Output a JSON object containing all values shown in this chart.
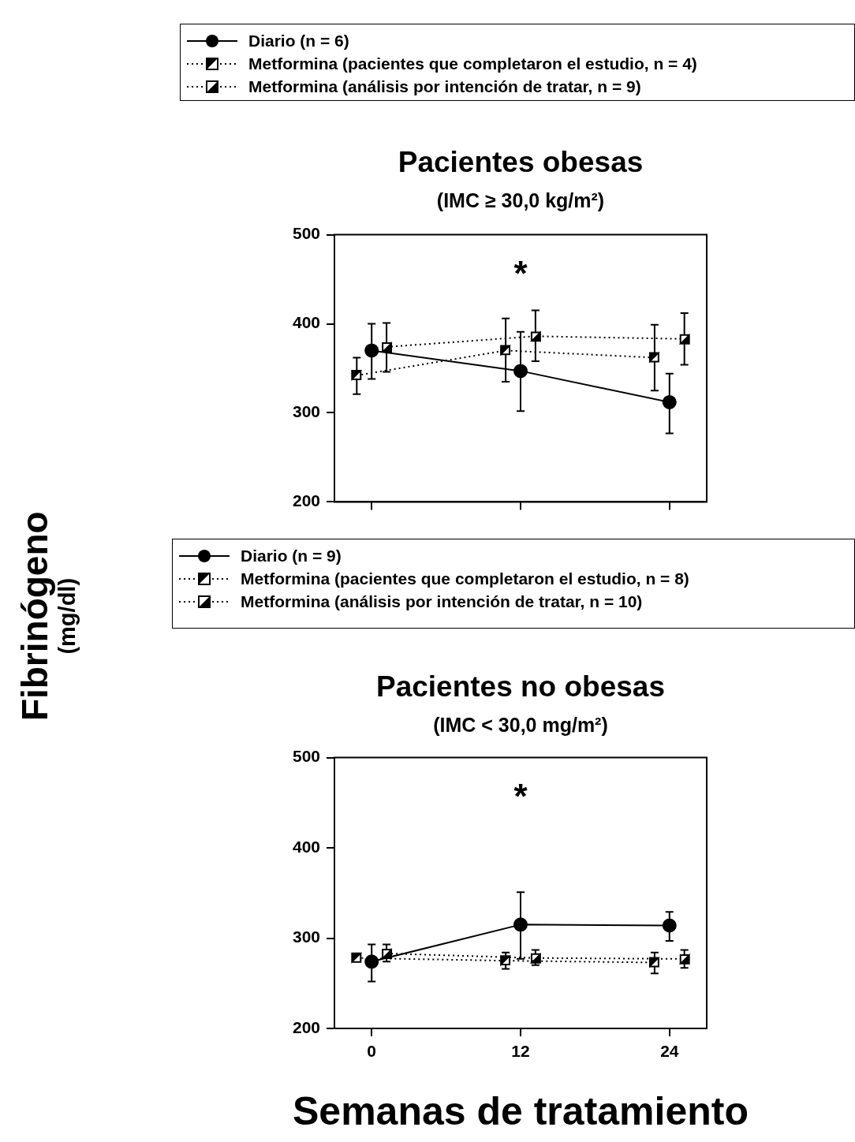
{
  "chart_data": [
    {
      "type": "line",
      "title": "Pacientes obesas",
      "subtitle": "(IMC ≥ 30,0 kg/m²)",
      "ylabel": "Fibrinógeno (mg/dl)",
      "xlim": [
        -3,
        27
      ],
      "xticks": [
        {
          "value": 0,
          "label": null
        },
        {
          "value": 12,
          "label": null
        },
        {
          "value": 24,
          "label": null
        }
      ],
      "ylim": [
        200,
        500
      ],
      "yticks": [
        200,
        300,
        400,
        500
      ],
      "tick_labels": "y",
      "legend": "top",
      "annotations": [
        "*"
      ],
      "series": [
        {
          "name": "Diario (n = 6)",
          "color": "#000000",
          "marker": "circle",
          "line_style": "solid",
          "x": [
            0,
            12,
            24
          ],
          "values": [
            370,
            347,
            312
          ],
          "errors": [
            [
              338,
              400
            ],
            [
              302,
              391
            ],
            [
              277,
              344
            ]
          ]
        },
        {
          "name": "Metformina (pacientes que completaron el estudio, n = 4)",
          "color": "#000000",
          "marker": "square",
          "line_style": "dotted",
          "x": [
            -1.2,
            10.8,
            22.8
          ],
          "values": [
            342,
            370,
            362
          ],
          "errors": [
            [
              321,
              362
            ],
            [
              335,
              406
            ],
            [
              325,
              399
            ]
          ]
        },
        {
          "name": "Metformina (análisis por intención de tratar, n = 9)",
          "color": "#000000",
          "marker": "square",
          "line_style": "dotted",
          "x": [
            1.2,
            13.2,
            25.2
          ],
          "values": [
            374,
            386,
            383
          ],
          "errors": [
            [
              346,
              401
            ],
            [
              358,
              415
            ],
            [
              354,
              412
            ]
          ]
        }
      ]
    },
    {
      "type": "line",
      "title": "Pacientes no obesas",
      "subtitle": "(IMC < 30,0 mg/m²)",
      "xlabel": "Semanas de tratamiento",
      "xlim": [
        -3,
        27
      ],
      "xticks": [
        0,
        12,
        24
      ],
      "ylim": [
        200,
        500
      ],
      "yticks": [
        200,
        300,
        400,
        500
      ],
      "legend": "top",
      "annotations": [
        "*"
      ],
      "series": [
        {
          "name": "Diario (n = 9)",
          "color": "#000000",
          "marker": "circle",
          "line_style": "solid",
          "x": [
            0,
            12,
            24
          ],
          "values": [
            274,
            315,
            314
          ],
          "errors": [
            [
              252,
              293
            ],
            [
              277,
              351
            ],
            [
              297,
              329
            ]
          ]
        },
        {
          "name": "Metformina (pacientes que completaron el estudio, n = 8)",
          "color": "#000000",
          "marker": "square",
          "line_style": "dotted",
          "x": [
            -1.2,
            10.8,
            22.8
          ],
          "values": [
            278,
            275,
            273
          ],
          "errors": [
            null,
            [
              266,
              284
            ],
            [
              261,
              284
            ]
          ]
        },
        {
          "name": "Metformina (análisis por intención de tratar, n = 10)",
          "color": "#000000",
          "marker": "square",
          "line_style": "dotted",
          "x": [
            1.2,
            13.2,
            25.2
          ],
          "values": [
            283,
            278,
            277
          ],
          "errors": [
            [
              274,
              293
            ],
            [
              270,
              287
            ],
            [
              267,
              287
            ]
          ]
        }
      ]
    }
  ]
}
